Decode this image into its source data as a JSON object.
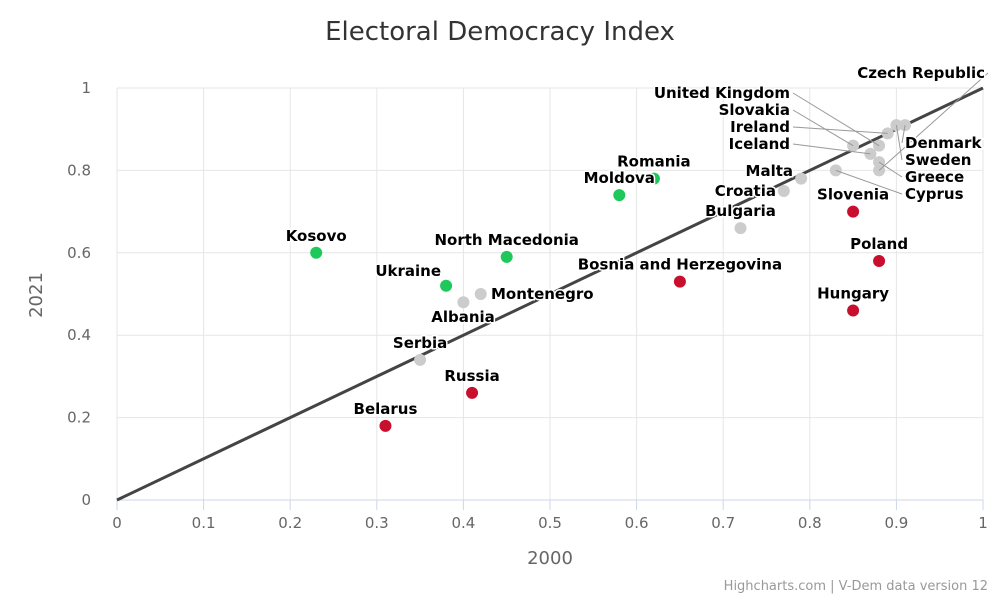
{
  "chart_data": {
    "type": "scatter",
    "title": "Electoral Democracy Index",
    "xlabel": "2000",
    "ylabel": "2021",
    "xlim": [
      0,
      1
    ],
    "ylim": [
      0,
      1
    ],
    "xticks": [
      "0",
      "0.1",
      "0.2",
      "0.3",
      "0.4",
      "0.5",
      "0.6",
      "0.7",
      "0.8",
      "0.9",
      "1"
    ],
    "yticks": [
      "0",
      "0.2",
      "0.4",
      "0.6",
      "0.8",
      "1"
    ],
    "grid": true,
    "reference_line": "y = x",
    "colors": {
      "improved": "#1ec85a",
      "declined": "#c8102e",
      "stable": "#cccccc",
      "line": "#444444"
    },
    "points": [
      {
        "name": "Kosovo",
        "x": 0.23,
        "y": 0.6,
        "group": "improved"
      },
      {
        "name": "North Macedonia",
        "x": 0.45,
        "y": 0.59,
        "group": "improved"
      },
      {
        "name": "Ukraine",
        "x": 0.38,
        "y": 0.52,
        "group": "improved"
      },
      {
        "name": "Moldova",
        "x": 0.58,
        "y": 0.74,
        "group": "improved"
      },
      {
        "name": "Romania",
        "x": 0.62,
        "y": 0.78,
        "group": "improved"
      },
      {
        "name": "Montenegro",
        "x": 0.42,
        "y": 0.5,
        "group": "stable"
      },
      {
        "name": "Albania",
        "x": 0.4,
        "y": 0.48,
        "group": "stable"
      },
      {
        "name": "Serbia",
        "x": 0.35,
        "y": 0.34,
        "group": "stable"
      },
      {
        "name": "Bulgaria",
        "x": 0.72,
        "y": 0.66,
        "group": "stable"
      },
      {
        "name": "Croatia",
        "x": 0.77,
        "y": 0.75,
        "group": "stable"
      },
      {
        "name": "Malta",
        "x": 0.79,
        "y": 0.78,
        "group": "stable"
      },
      {
        "name": "Cyprus",
        "x": 0.83,
        "y": 0.8,
        "group": "stable"
      },
      {
        "name": "Czech Republic",
        "x": 0.88,
        "y": 0.8,
        "group": "stable"
      },
      {
        "name": "Greece",
        "x": 0.88,
        "y": 0.82,
        "group": "stable"
      },
      {
        "name": "Iceland",
        "x": 0.87,
        "y": 0.84,
        "group": "stable"
      },
      {
        "name": "Slovakia",
        "x": 0.85,
        "y": 0.86,
        "group": "stable"
      },
      {
        "name": "United Kingdom",
        "x": 0.88,
        "y": 0.86,
        "group": "stable"
      },
      {
        "name": "Ireland",
        "x": 0.89,
        "y": 0.89,
        "group": "stable"
      },
      {
        "name": "Sweden",
        "x": 0.9,
        "y": 0.91,
        "group": "stable"
      },
      {
        "name": "Denmark",
        "x": 0.91,
        "y": 0.91,
        "group": "stable"
      },
      {
        "name": "Bosnia and Herzegovina",
        "x": 0.65,
        "y": 0.53,
        "group": "declined"
      },
      {
        "name": "Russia",
        "x": 0.41,
        "y": 0.26,
        "group": "declined"
      },
      {
        "name": "Belarus",
        "x": 0.31,
        "y": 0.18,
        "group": "declined"
      },
      {
        "name": "Slovenia",
        "x": 0.85,
        "y": 0.7,
        "group": "declined"
      },
      {
        "name": "Poland",
        "x": 0.88,
        "y": 0.58,
        "group": "declined"
      },
      {
        "name": "Hungary",
        "x": 0.85,
        "y": 0.46,
        "group": "declined"
      }
    ]
  },
  "credits": "Highcharts.com | V-Dem data version 12"
}
